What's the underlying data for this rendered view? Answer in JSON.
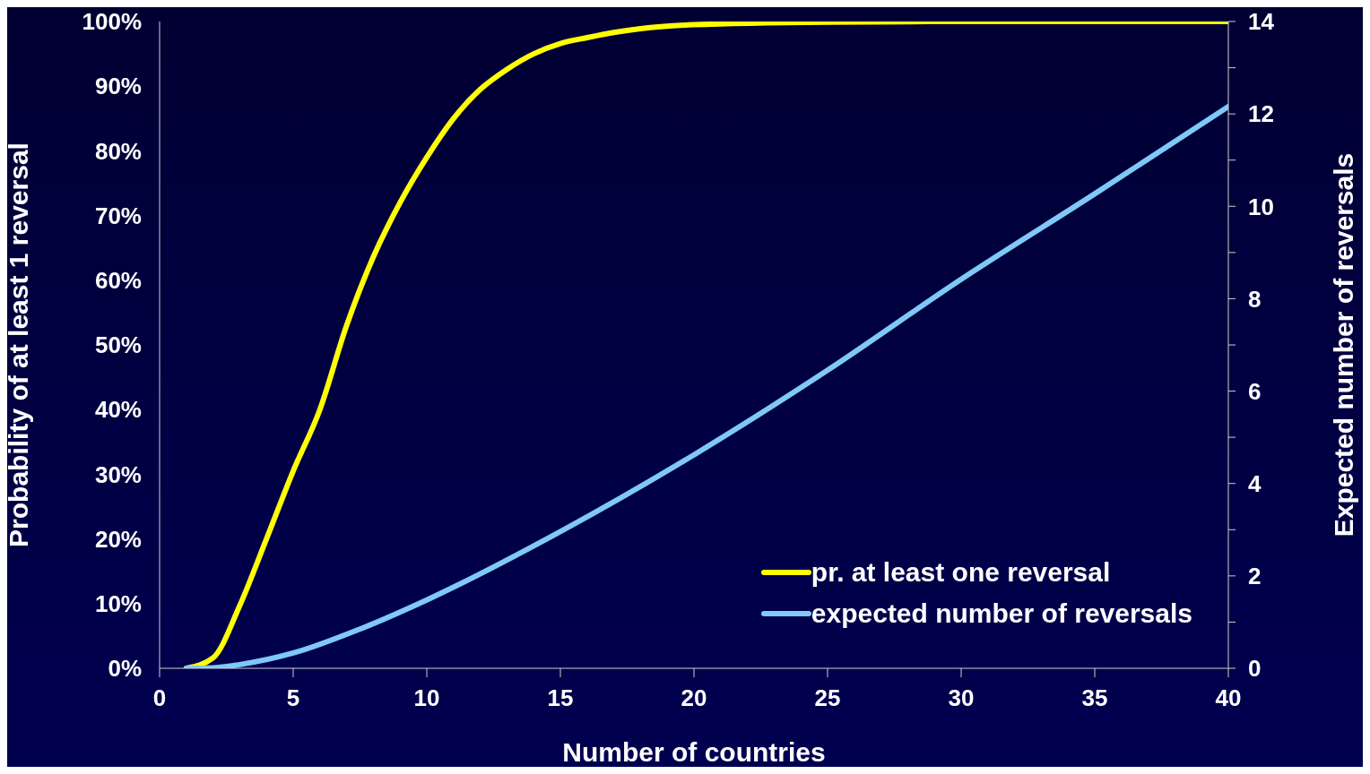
{
  "chart_data": {
    "type": "line",
    "xlabel": "Number of countries",
    "ylabel": "Probability of at least 1 reversal",
    "y2label": "Expected number of reversals",
    "xlim": [
      0,
      40
    ],
    "xticks": [
      0,
      5,
      10,
      15,
      20,
      25,
      30,
      35,
      40
    ],
    "ylim": [
      0,
      100
    ],
    "yticks": [
      {
        "value": 0,
        "label": "0%"
      },
      {
        "value": 10,
        "label": "10%"
      },
      {
        "value": 20,
        "label": "20%"
      },
      {
        "value": 30,
        "label": "30%"
      },
      {
        "value": 40,
        "label": "40%"
      },
      {
        "value": 50,
        "label": "50%"
      },
      {
        "value": 60,
        "label": "60%"
      },
      {
        "value": 70,
        "label": "70%"
      },
      {
        "value": 80,
        "label": "80%"
      },
      {
        "value": 90,
        "label": "90%"
      },
      {
        "value": 100,
        "label": "100%"
      }
    ],
    "y2lim": [
      0,
      14
    ],
    "y2ticks": [
      0,
      {
        "value": 1,
        "label": null
      },
      2,
      {
        "value": 3,
        "label": null
      },
      4,
      {
        "value": 5,
        "label": null
      },
      6,
      {
        "value": 7,
        "label": null
      },
      8,
      {
        "value": 9,
        "label": null
      },
      10,
      {
        "value": 11,
        "label": null
      },
      12,
      {
        "value": 13,
        "label": null
      },
      14
    ],
    "grid": false,
    "legend": "bottom right",
    "series": [
      {
        "name": "pr. at least one reversal",
        "color": "#ffff00",
        "x": [
          1,
          2,
          3,
          4,
          5,
          6,
          7,
          8,
          9,
          10,
          11,
          12,
          13,
          14,
          15,
          16,
          17,
          18,
          20,
          25,
          30,
          35,
          40
        ],
        "values": [
          0,
          1.6,
          9.7,
          20,
          30.5,
          40,
          53,
          63.6,
          72,
          79,
          85,
          89.5,
          92.6,
          95,
          96.6,
          97.5,
          98.3,
          98.9,
          99.5,
          99.9,
          100,
          100,
          100
        ]
      },
      {
        "name": "expected number of reversals",
        "color": "#7fc8f8",
        "axis": "y2",
        "x": [
          1,
          2,
          3,
          5,
          7.5,
          10,
          15,
          20,
          25,
          30,
          35,
          40
        ],
        "values": [
          0,
          0.01,
          0.08,
          0.33,
          0.85,
          1.48,
          2.96,
          4.62,
          6.45,
          8.42,
          10.27,
          12.16
        ]
      }
    ]
  }
}
